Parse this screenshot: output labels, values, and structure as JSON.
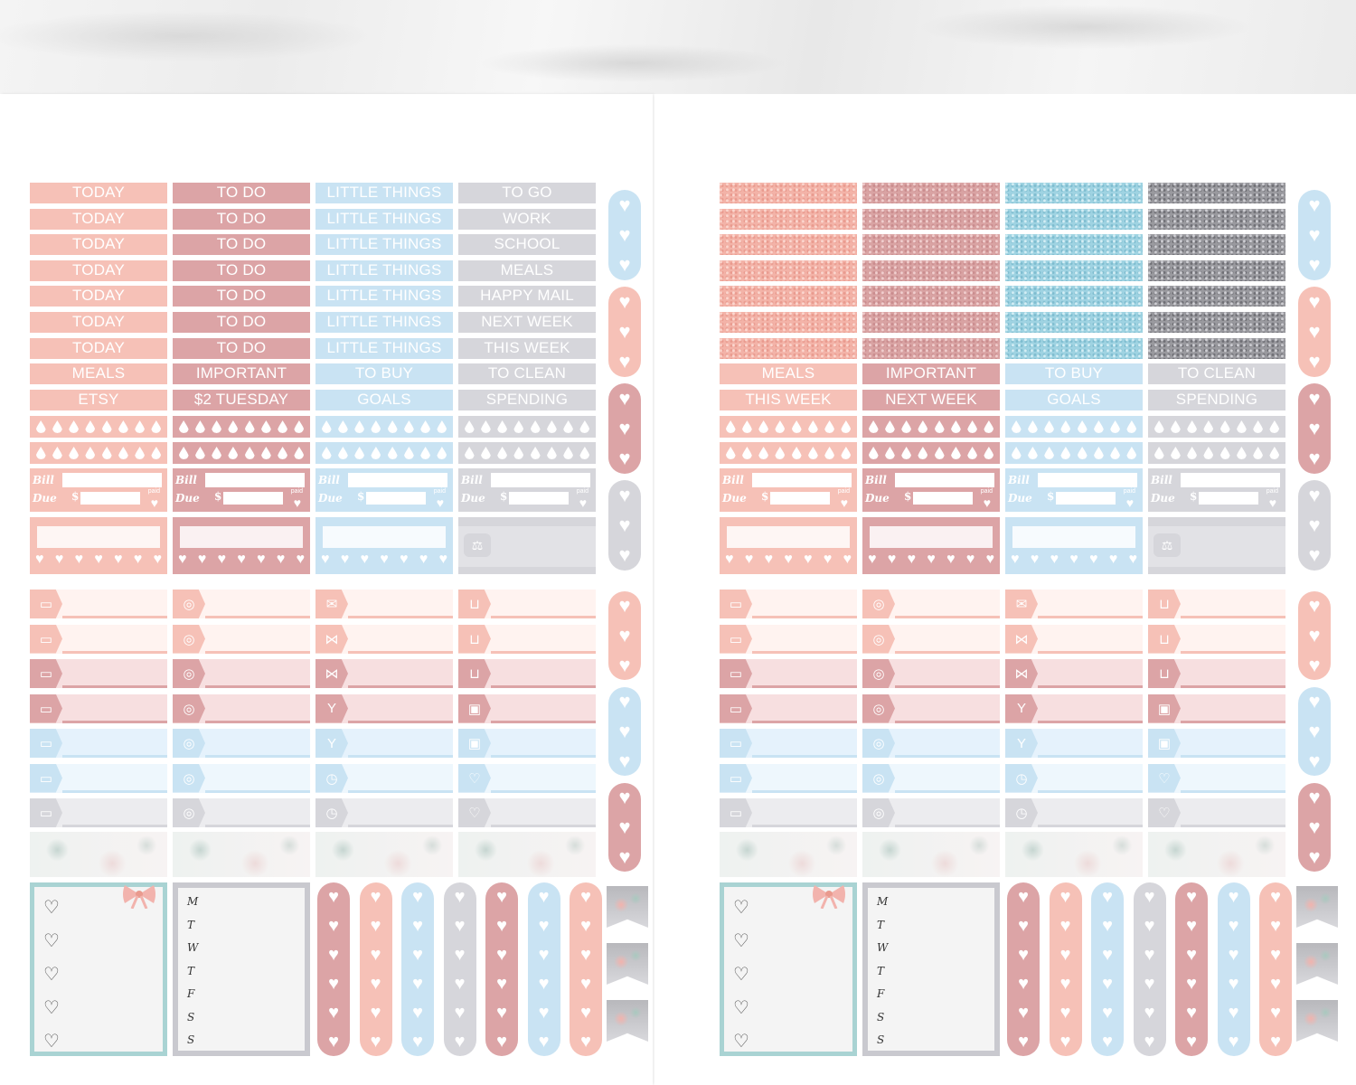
{
  "colors": {
    "peach": "#f6c1b7",
    "rose": "#dca4a6",
    "blue": "#c9e3f3",
    "grey": "#d6d6db",
    "lightpeach": "#fde6e1",
    "lightblue": "#e4f1fa",
    "mint": "#a9d3d3"
  },
  "left": {
    "col1": [
      "TODAY",
      "TODAY",
      "TODAY",
      "TODAY",
      "TODAY",
      "TODAY",
      "TODAY",
      "MEALS",
      "ETSY"
    ],
    "col2": [
      "TO DO",
      "TO DO",
      "TO DO",
      "TO DO",
      "TO DO",
      "TO DO",
      "TO DO",
      "IMPORTANT",
      "$2 TUESDAY"
    ],
    "col3": [
      "LITTLE THINGS",
      "LITTLE THINGS",
      "LITTLE THINGS",
      "LITTLE THINGS",
      "LITTLE THINGS",
      "LITTLE THINGS",
      "LITTLE THINGS",
      "TO BUY",
      "GOALS"
    ],
    "col4": [
      "TO GO",
      "WORK",
      "SCHOOL",
      "MEALS",
      "HAPPY MAIL",
      "NEXT WEEK",
      "THIS WEEK",
      "TO CLEAN",
      "SPENDING"
    ]
  },
  "right": {
    "col1": [
      "MEALS",
      "THIS WEEK"
    ],
    "col2": [
      "IMPORTANT",
      "NEXT WEEK"
    ],
    "col3": [
      "TO BUY",
      "GOALS"
    ],
    "col4": [
      "TO CLEAN",
      "SPENDING"
    ]
  },
  "bill": {
    "bill": "Bill",
    "due": "Due",
    "dollar": "$",
    "paid": "paid"
  },
  "weekdays": [
    "M",
    "T",
    "W",
    "T",
    "F",
    "S",
    "S"
  ],
  "icons": {
    "c1": [
      "tv-icon",
      "tv-icon",
      "tv-icon",
      "tv-icon",
      "tv-icon",
      "tv-icon",
      "tv-icon"
    ],
    "c2": [
      "plate-icon",
      "plate-icon",
      "plate-icon",
      "plate-icon",
      "plate-icon",
      "plate-icon",
      "plate-icon"
    ],
    "c3": [
      "mail-icon",
      "bow-icon",
      "bow-icon",
      "cheers-icon",
      "cheers-icon",
      "alarm-icon",
      "alarm-icon"
    ],
    "c4": [
      "cart-icon",
      "cart-icon",
      "cart-icon",
      "gift-icon",
      "gift-icon",
      "heart-icon",
      "heart-icon"
    ]
  }
}
